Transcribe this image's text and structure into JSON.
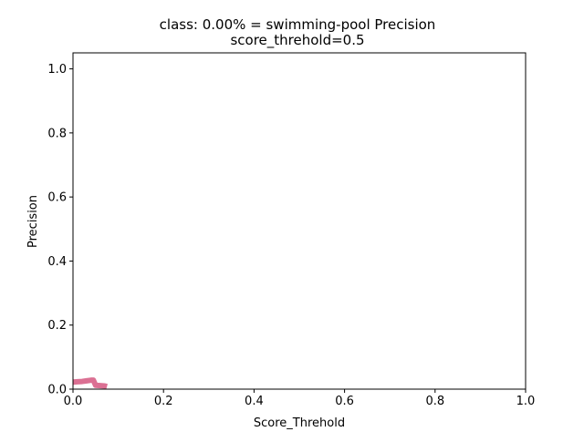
{
  "chart_data": {
    "type": "line",
    "title": "class: 0.00% = swimming-pool Precision",
    "subtitle": "score_threhold=0.5",
    "xlabel": "Score_Threhold",
    "ylabel": "Precision",
    "xlim": [
      0.0,
      1.0
    ],
    "ylim": [
      0.0,
      1.05
    ],
    "xticks": [
      "0.0",
      "0.2",
      "0.4",
      "0.6",
      "0.8",
      "1.0"
    ],
    "yticks": [
      "0.0",
      "0.2",
      "0.4",
      "0.6",
      "0.8",
      "1.0"
    ],
    "grid": false,
    "series": [
      {
        "color": "#db7093",
        "points": [
          [
            0.0,
            0.022
          ],
          [
            0.01,
            0.023
          ],
          [
            0.02,
            0.024
          ],
          [
            0.03,
            0.026
          ],
          [
            0.04,
            0.028
          ],
          [
            0.045,
            0.028
          ],
          [
            0.05,
            0.012
          ],
          [
            0.06,
            0.011
          ],
          [
            0.07,
            0.01
          ],
          [
            0.075,
            0.008
          ]
        ]
      }
    ]
  }
}
